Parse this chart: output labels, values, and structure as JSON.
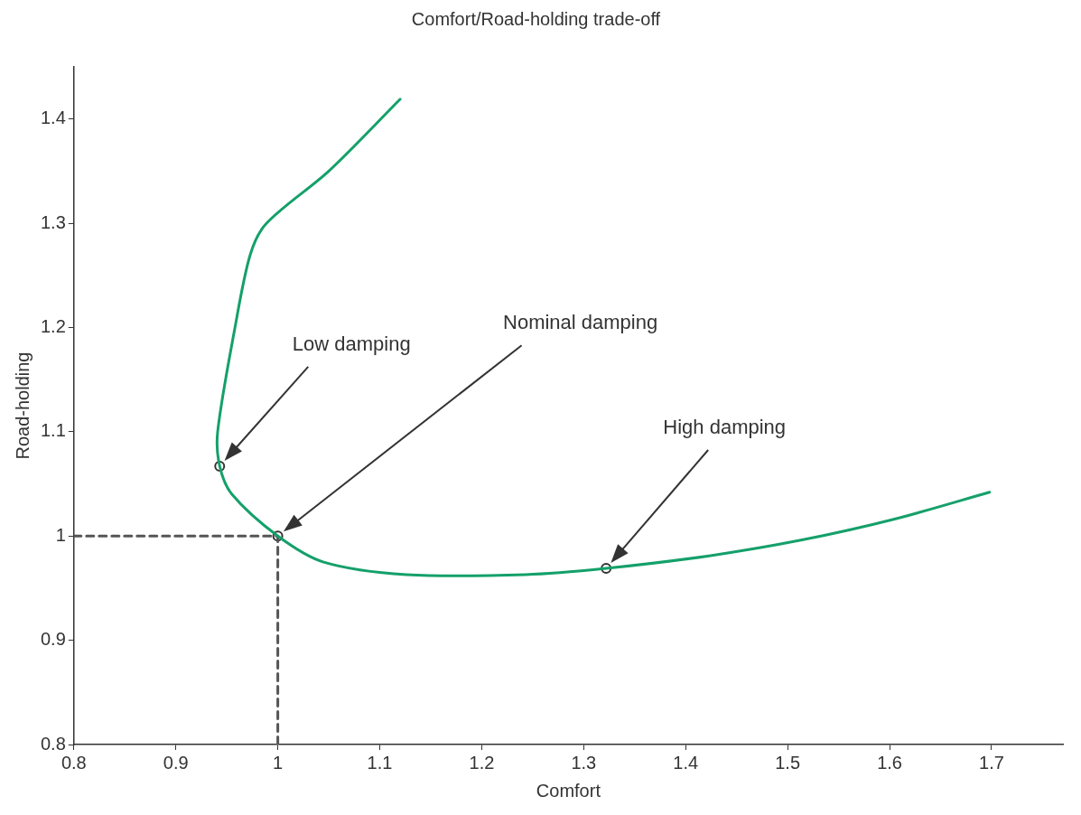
{
  "chart_data": {
    "type": "line",
    "title": "Comfort/Road-holding trade-off",
    "xlabel": "Comfort",
    "ylabel": "Road-holding",
    "xlim": [
      0.8,
      1.77
    ],
    "xticks": [
      0.8,
      0.9,
      {
        "value": 1,
        "label": "1"
      },
      1.1,
      1.2,
      1.3,
      1.4,
      1.5,
      1.6,
      1.7
    ],
    "ylim": [
      0.8,
      1.45
    ],
    "yticks": [
      0.8,
      0.9,
      {
        "value": 1,
        "label": "1"
      },
      1.1,
      1.2,
      1.3,
      1.4
    ],
    "grid": false,
    "legend": false,
    "series": [
      {
        "type": "line",
        "color": "#14a06a",
        "marker": "none",
        "line_style": "solid",
        "x": [
          1.12,
          1.05,
          0.989,
          0.973,
          0.958,
          0.941,
          0.943,
          0.955,
          1.0,
          1.045,
          1.126,
          1.243,
          1.322,
          1.423,
          1.513,
          1.604,
          1.698
        ],
        "values": [
          1.419,
          1.35,
          1.3,
          1.27,
          1.2,
          1.1,
          1.067,
          1.04,
          1.0,
          0.975,
          0.963,
          0.963,
          0.969,
          0.981,
          0.996,
          1.016,
          1.042
        ]
      },
      {
        "type": "line",
        "color": "#555555",
        "marker": "none",
        "line_style": "dashed",
        "x": [
          0.8,
          1.0,
          1.0
        ],
        "values": [
          1.0,
          1.0,
          0.8
        ]
      },
      {
        "type": "scatter",
        "color": "#333333",
        "marker": "circle",
        "x": [
          0.943,
          1.0,
          1.322
        ],
        "values": [
          1.067,
          1.0,
          0.969
        ]
      }
    ],
    "annotations": [
      "Low damping",
      "Nominal damping",
      "High damping"
    ]
  }
}
